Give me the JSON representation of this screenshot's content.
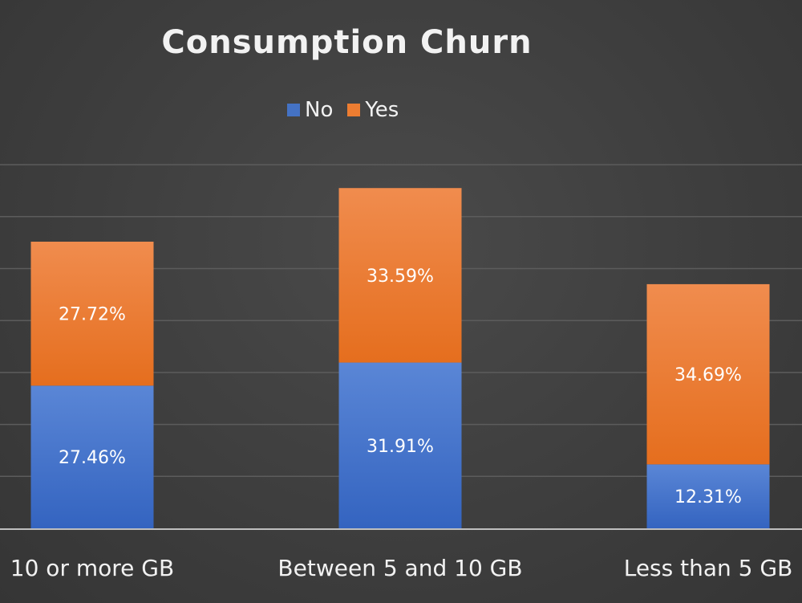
{
  "chart_data": {
    "type": "bar",
    "stacked": true,
    "title": "Consumption Churn",
    "categories": [
      "10 or more GB",
      "Between 5 and 10 GB",
      "Less than 5 GB"
    ],
    "series": [
      {
        "name": "No",
        "values": [
          27.46,
          31.91,
          12.31
        ],
        "labels": [
          "27.46%",
          "31.91%",
          "12.31%"
        ]
      },
      {
        "name": "Yes",
        "values": [
          27.72,
          33.59,
          34.69
        ],
        "labels": [
          "27.72%",
          "33.59%",
          "34.69%"
        ]
      }
    ],
    "colors": {
      "No": "#4472c4",
      "Yes": "#ed7d31"
    },
    "ylim": [
      0,
      70
    ],
    "grid": true,
    "legend_position": "top"
  }
}
